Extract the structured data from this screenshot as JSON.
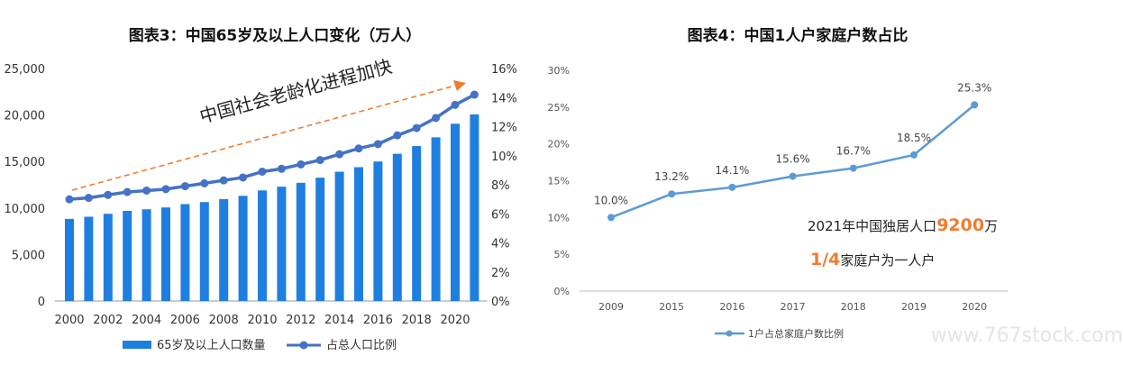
{
  "watermark": "www.767stock.com",
  "chart_data": [
    {
      "type": "bar+line",
      "title": "图表3：中国65岁及以上人口变化（万人）",
      "annotation": "中国社会老龄化进程加快",
      "categories": [
        2000,
        2001,
        2002,
        2003,
        2004,
        2005,
        2006,
        2007,
        2008,
        2009,
        2010,
        2011,
        2012,
        2013,
        2014,
        2015,
        2016,
        2017,
        2018,
        2019,
        2020,
        2021
      ],
      "x_tick_labels": [
        "2000",
        "2002",
        "2004",
        "2006",
        "2008",
        "2010",
        "2012",
        "2014",
        "2016",
        "2018",
        "2020"
      ],
      "y_left_ticks": [
        "0",
        "5,000",
        "10,000",
        "15,000",
        "20,000",
        "25,000"
      ],
      "y_right_ticks": [
        "0%",
        "2%",
        "4%",
        "6%",
        "8%",
        "10%",
        "12%",
        "14%",
        "16%"
      ],
      "ylim_left": [
        0,
        25000
      ],
      "ylim_right": [
        0,
        16
      ],
      "legend_position": "bottom",
      "series": [
        {
          "name": "65岁及以上人口数量",
          "type": "bar",
          "axis": "left",
          "color": "#1f7fe0",
          "values": [
            8830,
            9060,
            9380,
            9690,
            9860,
            10060,
            10420,
            10640,
            10960,
            11310,
            11890,
            12290,
            12710,
            13260,
            13900,
            14390,
            15000,
            15830,
            16660,
            17600,
            19060,
            20060
          ]
        },
        {
          "name": "占总人口比例",
          "type": "line",
          "axis": "right",
          "color": "#4472c4",
          "values": [
            7.0,
            7.1,
            7.3,
            7.5,
            7.6,
            7.7,
            7.9,
            8.1,
            8.3,
            8.5,
            8.9,
            9.1,
            9.4,
            9.7,
            10.1,
            10.5,
            10.8,
            11.4,
            11.9,
            12.6,
            13.5,
            14.2
          ]
        }
      ]
    },
    {
      "type": "line",
      "title": "图表4：中国1人户家庭户数占比",
      "categories": [
        "2009",
        "2015",
        "2016",
        "2017",
        "2018",
        "2019",
        "2020"
      ],
      "y_ticks": [
        "0%",
        "5%",
        "10%",
        "15%",
        "20%",
        "25%",
        "30%"
      ],
      "ylim": [
        0,
        30
      ],
      "legend_position": "bottom",
      "series": [
        {
          "name": "1户占总家庭户数比例",
          "color": "#5b9bd5",
          "values": [
            10.0,
            13.2,
            14.1,
            15.6,
            16.7,
            18.5,
            25.3
          ],
          "data_labels": [
            "10.0%",
            "13.2%",
            "14.1%",
            "15.6%",
            "16.7%",
            "18.5%",
            "25.3%"
          ]
        }
      ],
      "annotations": {
        "line1_prefix": "2021年中国独居人口",
        "line1_highlight": "9200",
        "line1_suffix": "万",
        "line2_highlight": "1/4",
        "line2_suffix": "家庭户为一人户",
        "highlight_color": "#ed7d31"
      }
    }
  ]
}
